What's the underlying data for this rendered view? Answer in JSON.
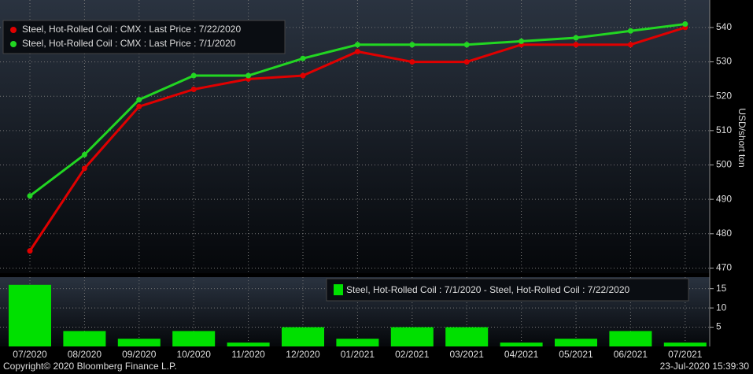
{
  "chart_data": [
    {
      "type": "line",
      "categories": [
        "07/2020",
        "08/2020",
        "09/2020",
        "10/2020",
        "11/2020",
        "12/2020",
        "01/2021",
        "02/2021",
        "03/2021",
        "04/2021",
        "05/2021",
        "06/2021",
        "07/2021"
      ],
      "y_label": "USD/short ton",
      "series": [
        {
          "name": "Steel, Hot-Rolled Coil : CMX : Last Price : 7/22/2020",
          "color": "#e00000",
          "values": [
            475,
            499,
            517,
            522,
            525,
            526,
            533,
            530,
            530,
            535,
            535,
            535,
            540
          ]
        },
        {
          "name": "Steel, Hot-Rolled Coil : CMX : Last Price : 7/1/2020",
          "color": "#22d622",
          "values": [
            491,
            503,
            519,
            526,
            526,
            531,
            535,
            535,
            535,
            536,
            537,
            539,
            541
          ]
        }
      ],
      "ylim": [
        468.5,
        548
      ],
      "yticks": [
        470,
        480,
        490,
        500,
        510,
        520,
        530,
        540
      ],
      "grid": true,
      "legend": "top-left"
    },
    {
      "type": "bar",
      "categories": [
        "07/2020",
        "08/2020",
        "09/2020",
        "10/2020",
        "11/2020",
        "12/2020",
        "01/2021",
        "02/2021",
        "03/2021",
        "04/2021",
        "05/2021",
        "06/2021",
        "07/2021"
      ],
      "series": [
        {
          "name": "Steel, Hot-Rolled Coil : 7/1/2020 - Steel, Hot-Rolled Coil : 7/22/2020",
          "color": "#00e000",
          "values": [
            16,
            4,
            2,
            4,
            1,
            5,
            2,
            5,
            5,
            1,
            2,
            4,
            1
          ]
        }
      ],
      "ylim": [
        0,
        18
      ],
      "yticks": [
        5,
        10,
        15
      ],
      "grid": true,
      "legend": "top-right"
    }
  ],
  "footer": {
    "copyright": "Copyright© 2020 Bloomberg Finance L.P.",
    "timestamp": "23-Jul-2020 15:39:30"
  }
}
